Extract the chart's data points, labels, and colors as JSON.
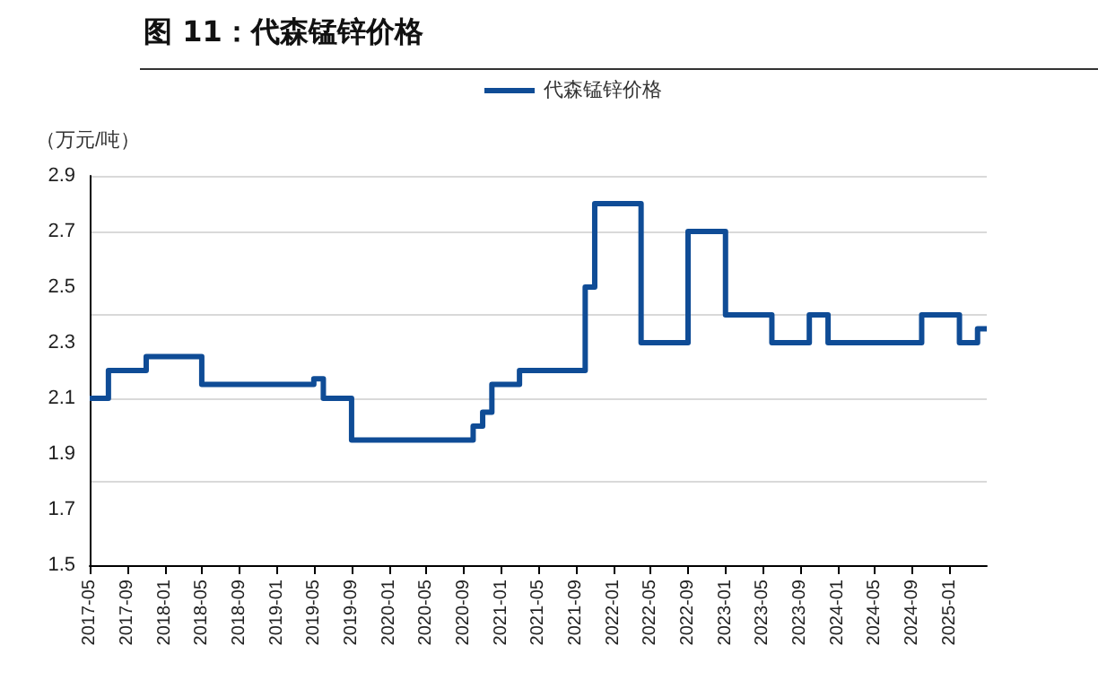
{
  "chart_data": {
    "type": "step",
    "title": "图 11：代森锰锌价格",
    "ylabel": "（万元/吨）",
    "x": [
      "2017-05",
      "2017-07",
      "2017-11",
      "2018-05",
      "2019-05",
      "2019-06",
      "2019-09",
      "2020-10",
      "2020-11",
      "2020-12",
      "2021-03",
      "2021-10",
      "2021-11",
      "2022-04",
      "2022-09",
      "2023-01",
      "2023-06",
      "2023-10",
      "2023-12",
      "2024-10",
      "2025-02",
      "2025-04",
      "2025-05"
    ],
    "series": [
      {
        "name": "代森锰锌价格",
        "color": "#0f4c96",
        "values": [
          2.1,
          2.2,
          2.25,
          2.15,
          2.17,
          2.1,
          1.95,
          2.0,
          2.05,
          2.15,
          2.2,
          2.5,
          2.8,
          2.3,
          2.7,
          2.4,
          2.3,
          2.4,
          2.3,
          2.4,
          2.3,
          2.35,
          2.35
        ]
      }
    ],
    "xlim": [
      "2017-05",
      "2025-05"
    ],
    "xticks": [
      "2017-05",
      "2017-09",
      "2018-01",
      "2018-05",
      "2018-09",
      "2019-01",
      "2019-05",
      "2019-09",
      "2020-01",
      "2020-05",
      "2020-09",
      "2021-01",
      "2021-05",
      "2021-09",
      "2022-01",
      "2022-05",
      "2022-09",
      "2023-01",
      "2023-05",
      "2023-09",
      "2024-01",
      "2024-05",
      "2024-09",
      "2025-01"
    ],
    "ylim": [
      1.5,
      2.9
    ],
    "yticks": [
      1.5,
      1.7,
      1.9,
      2.1,
      2.3,
      2.5,
      2.7,
      2.9
    ],
    "grid": "y",
    "legend": "top",
    "marker": "none",
    "line_style": "solid"
  }
}
